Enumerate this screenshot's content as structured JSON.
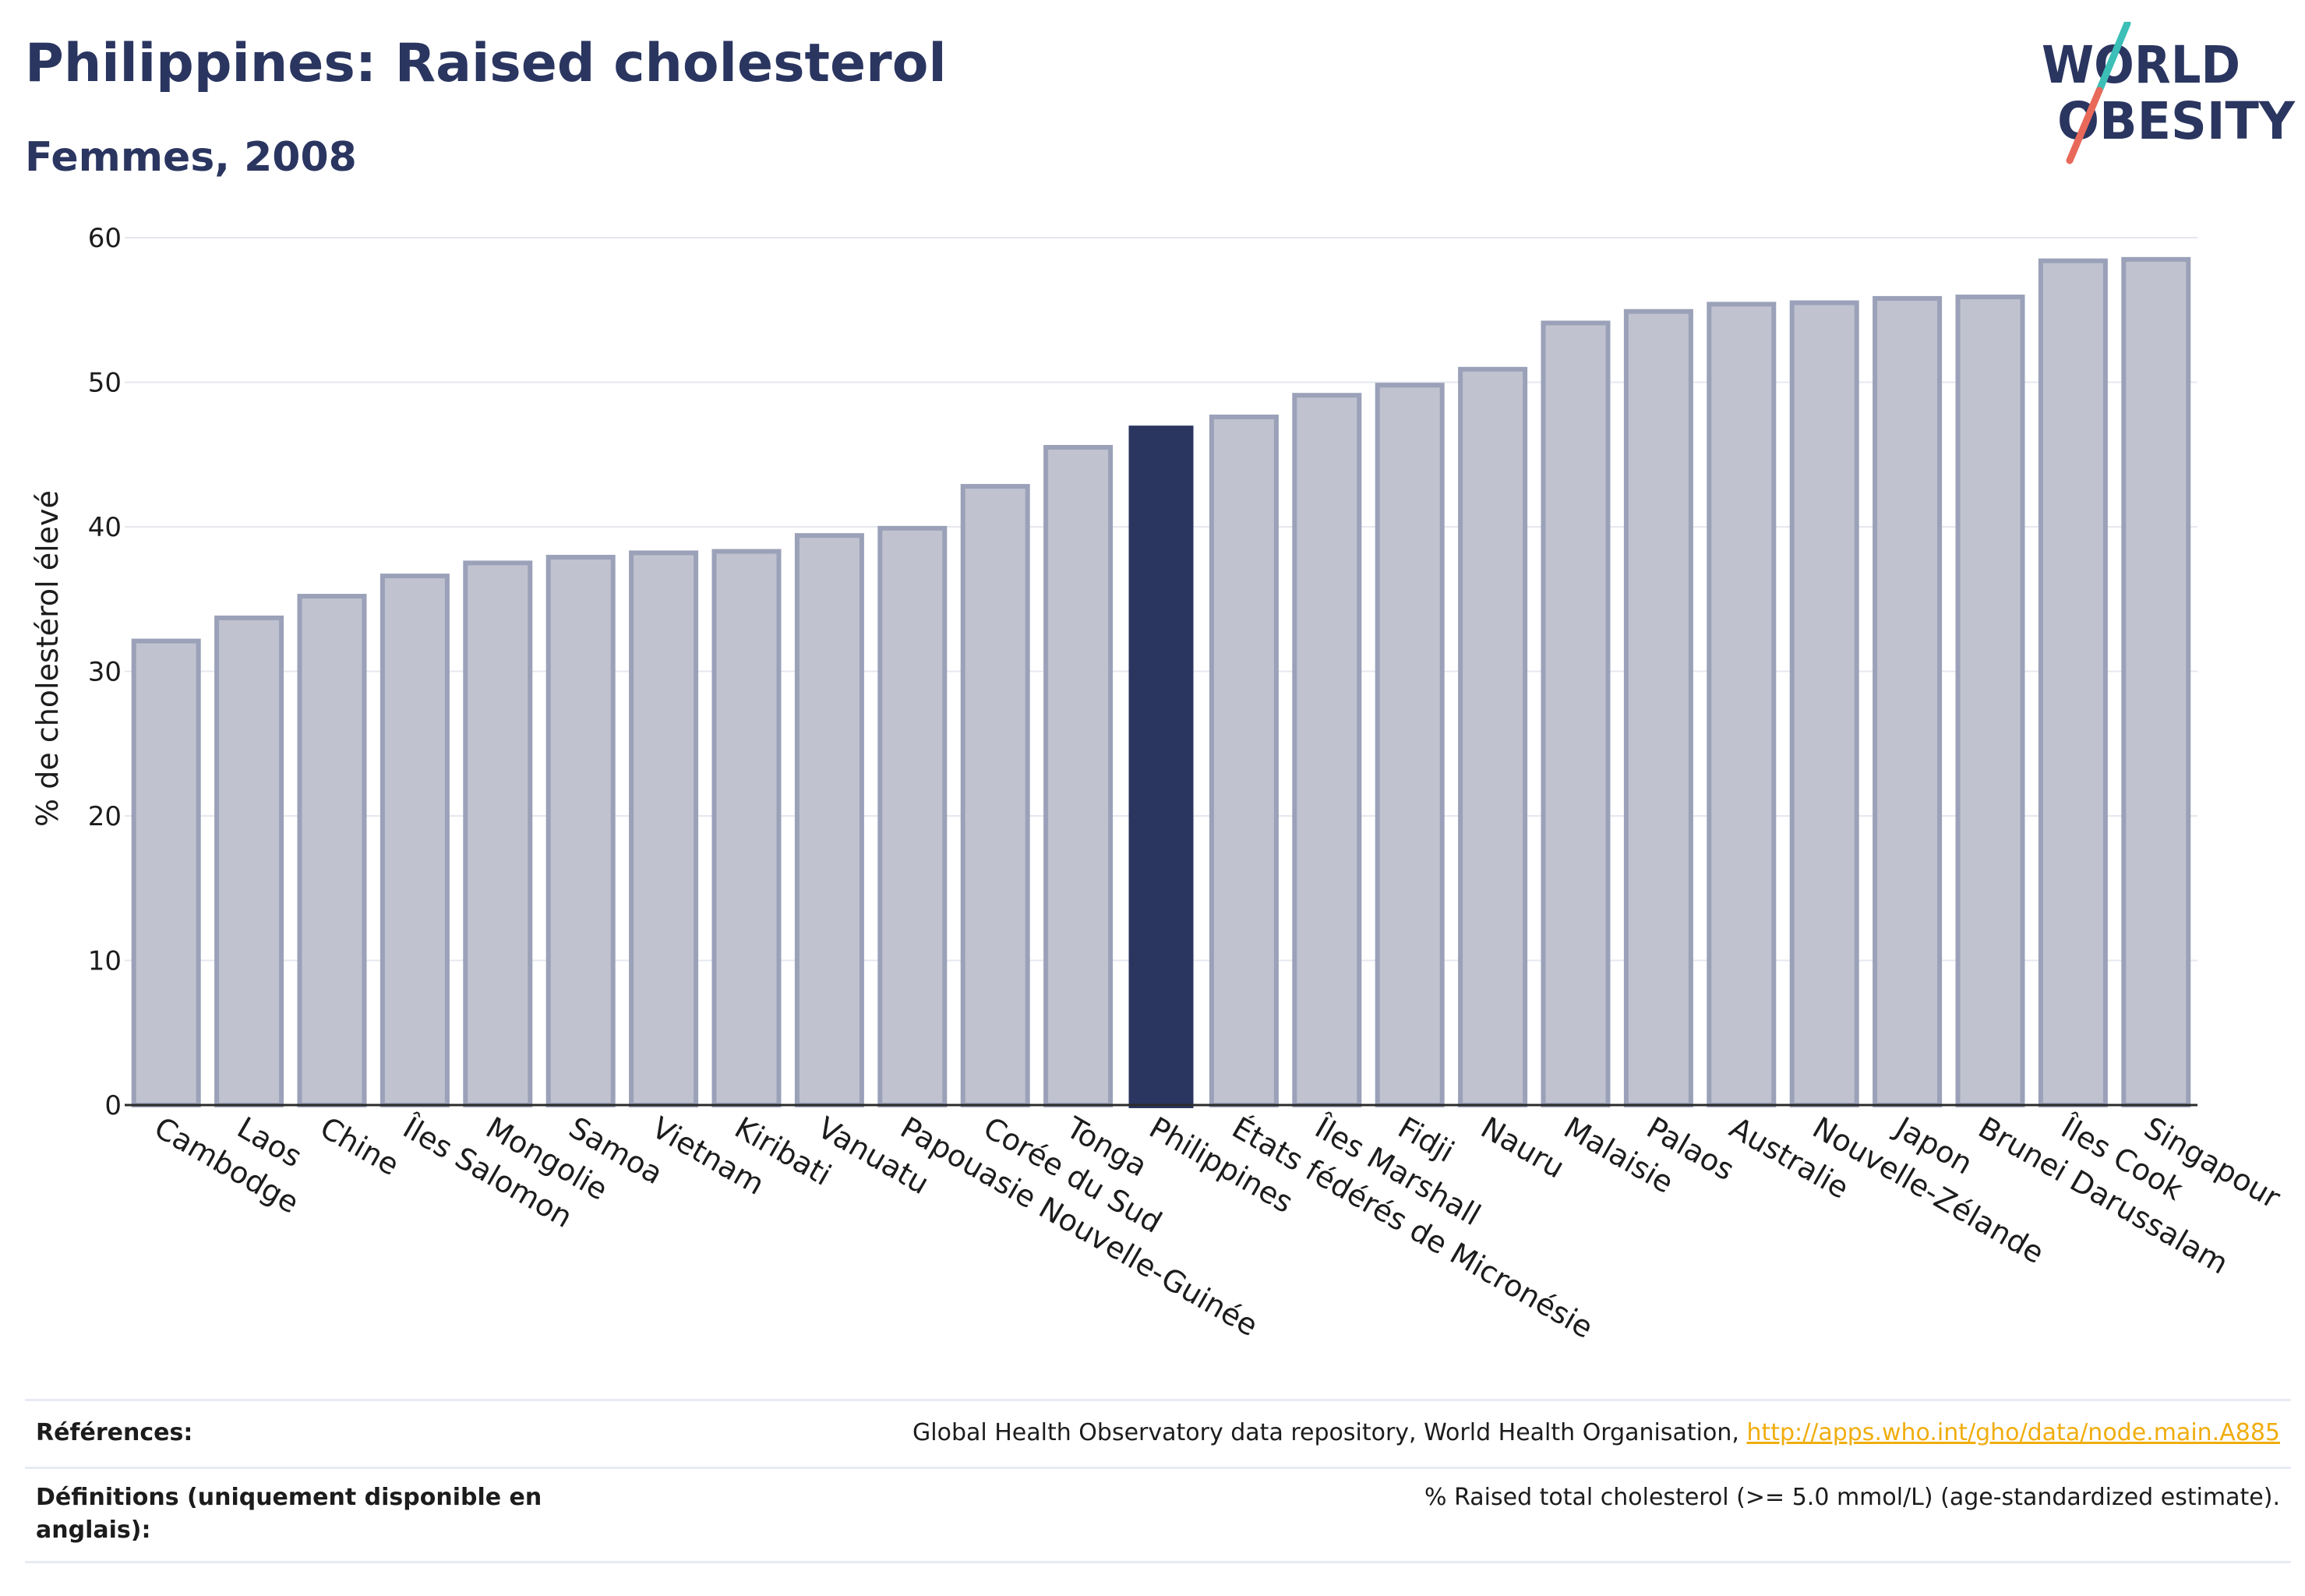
{
  "title": "Philippines: Raised cholesterol",
  "subtitle": "Femmes, 2008",
  "logo": {
    "line1": "WORLD",
    "line2": "OBESITY"
  },
  "colors": {
    "brand": "#2a3560",
    "bar_default": "#c0c3cf",
    "bar_default_stroke": "#9aa1b8",
    "bar_highlight": "#2a3560",
    "logo_slash_top": "#3bbfb7",
    "logo_slash_bottom": "#e8695a",
    "link": "#f0ad0e"
  },
  "chart_data": {
    "type": "bar",
    "ylabel": "% de cholestérol élevé",
    "xlabel": "",
    "ylim": [
      0,
      60
    ],
    "yticks": [
      0,
      10,
      20,
      30,
      40,
      50,
      60
    ],
    "grid": true,
    "highlight": "Philippines",
    "categories": [
      "Cambodge",
      "Laos",
      "Chine",
      "Îles Salomon",
      "Mongolie",
      "Samoa",
      "Vietnam",
      "Kiribati",
      "Vanuatu",
      "Papouasie Nouvelle-Guinée",
      "Corée du Sud",
      "Tonga",
      "Philippines",
      "États fédérés de Micronésie",
      "Îles Marshall",
      "Fidji",
      "Nauru",
      "Malaisie",
      "Palaos",
      "Australie",
      "Nouvelle-Zélande",
      "Japon",
      "Brunei Darussalam",
      "Îles Cook",
      "Singapour"
    ],
    "values": [
      32.1,
      33.7,
      35.2,
      36.6,
      37.5,
      37.9,
      38.2,
      38.3,
      39.4,
      39.9,
      42.8,
      45.5,
      47.0,
      47.6,
      49.1,
      49.8,
      50.9,
      54.1,
      54.9,
      55.4,
      55.5,
      55.8,
      55.9,
      58.4,
      58.5
    ]
  },
  "footer": {
    "references_label": "Références:",
    "references_text": "Global Health Observatory data repository, World Health Organisation, ",
    "references_link": "http://apps.who.int/gho/data/node.main.A885",
    "definitions_label": "Définitions (uniquement disponible en anglais):",
    "definitions_text": "% Raised total cholesterol (>= 5.0 mmol/L) (age-standardized estimate)."
  }
}
